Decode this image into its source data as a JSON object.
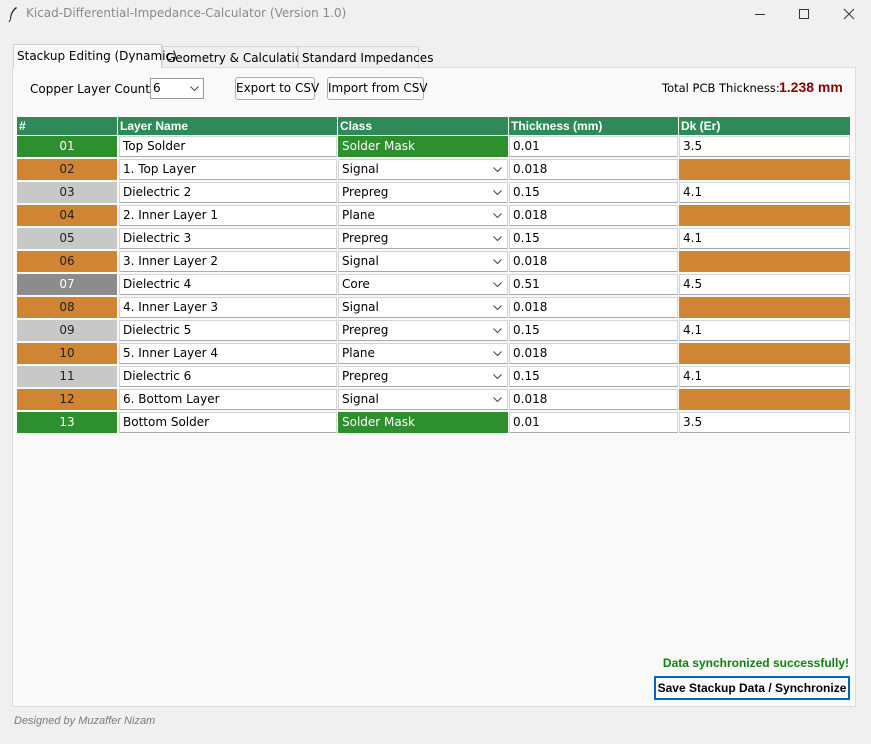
{
  "window": {
    "title": "Kicad-Differential-Impedance-Calculator (Version 1.0)"
  },
  "tabs": [
    {
      "label": "Stackup Editing (Dynamic)"
    },
    {
      "label": "Geometry & Calculation"
    },
    {
      "label": "Standard Impedances"
    }
  ],
  "toolbar": {
    "copper_label": "Copper Layer Count:",
    "copper_value": "6",
    "export_label": "Export to CSV",
    "import_label": "Import from CSV",
    "total_label": "Total PCB Thickness:",
    "total_value": "1.238 mm"
  },
  "table": {
    "headers": [
      "#",
      "Layer Name",
      "Class",
      "Thickness (mm)",
      "Dk (Er)"
    ],
    "rows": [
      {
        "num": "01",
        "name": "Top Solder",
        "cls": "Solder Mask",
        "thick": "0.01",
        "dk": "3.5",
        "kind": "solder"
      },
      {
        "num": "02",
        "name": "1. Top Layer",
        "cls": "Signal",
        "thick": "0.018",
        "dk": "",
        "kind": "copper"
      },
      {
        "num": "03",
        "name": "Dielectric 2",
        "cls": "Prepreg",
        "thick": "0.15",
        "dk": "4.1",
        "kind": "prepreg"
      },
      {
        "num": "04",
        "name": "2. Inner Layer 1",
        "cls": "Plane",
        "thick": "0.018",
        "dk": "",
        "kind": "copper"
      },
      {
        "num": "05",
        "name": "Dielectric 3",
        "cls": "Prepreg",
        "thick": "0.15",
        "dk": "4.1",
        "kind": "prepreg"
      },
      {
        "num": "06",
        "name": "3. Inner Layer 2",
        "cls": "Signal",
        "thick": "0.018",
        "dk": "",
        "kind": "copper"
      },
      {
        "num": "07",
        "name": "Dielectric 4",
        "cls": "Core",
        "thick": "0.51",
        "dk": "4.5",
        "kind": "core"
      },
      {
        "num": "08",
        "name": "4. Inner Layer 3",
        "cls": "Signal",
        "thick": "0.018",
        "dk": "",
        "kind": "copper"
      },
      {
        "num": "09",
        "name": "Dielectric 5",
        "cls": "Prepreg",
        "thick": "0.15",
        "dk": "4.1",
        "kind": "prepreg"
      },
      {
        "num": "10",
        "name": "5. Inner Layer 4",
        "cls": "Plane",
        "thick": "0.018",
        "dk": "",
        "kind": "copper"
      },
      {
        "num": "11",
        "name": "Dielectric 6",
        "cls": "Prepreg",
        "thick": "0.15",
        "dk": "4.1",
        "kind": "prepreg"
      },
      {
        "num": "12",
        "name": "6. Bottom Layer",
        "cls": "Signal",
        "thick": "0.018",
        "dk": "",
        "kind": "copper"
      },
      {
        "num": "13",
        "name": "Bottom Solder",
        "cls": "Solder Mask",
        "thick": "0.01",
        "dk": "3.5",
        "kind": "solder"
      }
    ]
  },
  "colors": {
    "header": "#2e8b57",
    "solder": "#2d8f2d",
    "copper": "#cf8534",
    "prepreg": "#c8c8c8",
    "core": "#8c8c8c",
    "total_value": "#8b0000",
    "status": "#108010"
  },
  "status": {
    "message": "Data synchronized successfully!",
    "save_label": "Save Stackup Data / Synchronize"
  },
  "footer": {
    "credit": "Designed by Muzaffer Nizam"
  }
}
